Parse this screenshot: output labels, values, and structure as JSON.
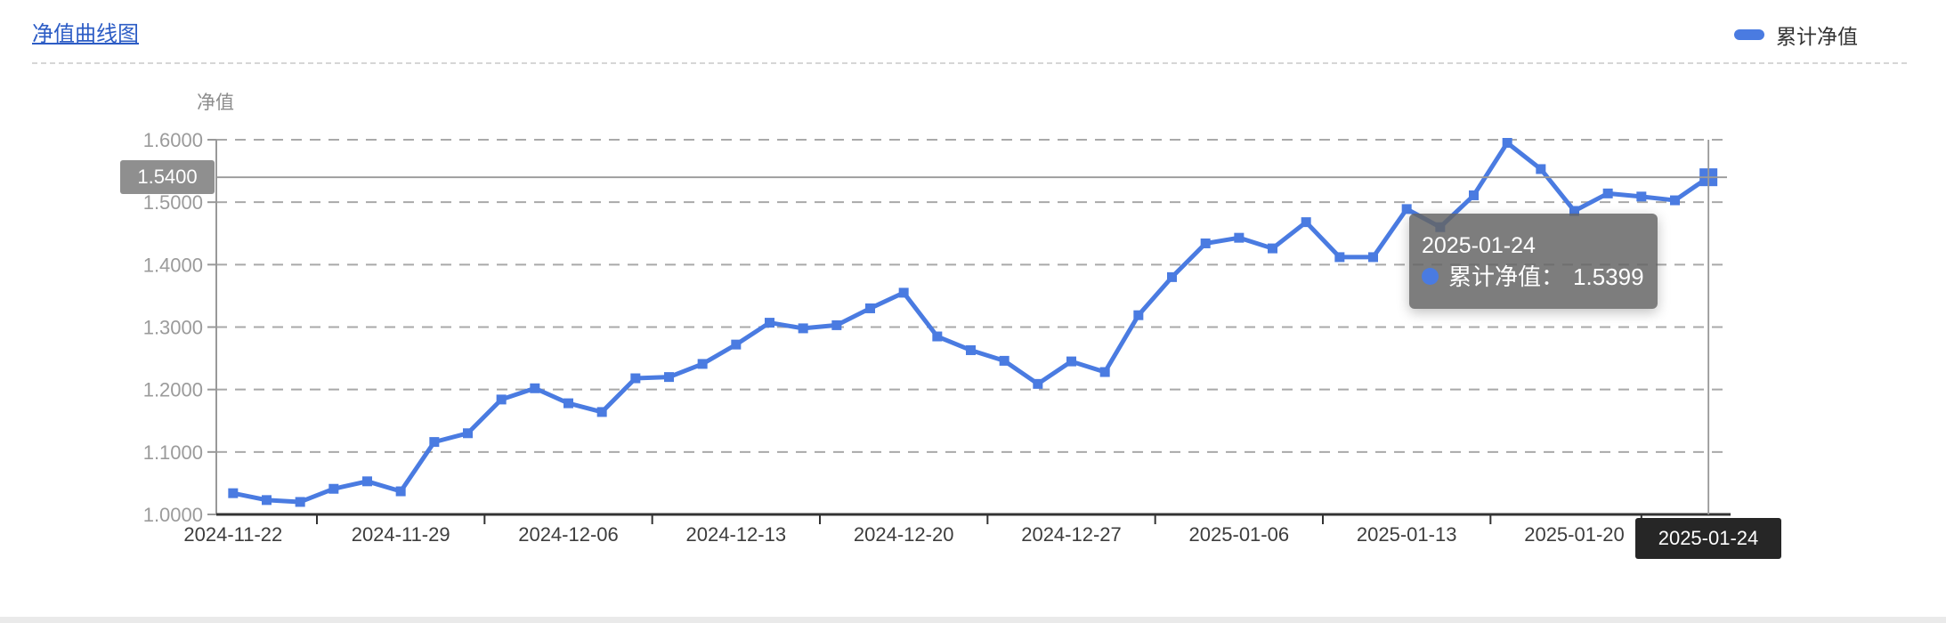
{
  "header": {
    "title": "净值曲线图"
  },
  "legend": {
    "label": "累计净值",
    "swatch_color": "#4a7be1"
  },
  "tooltip": {
    "date": "2025-01-24",
    "series_label": "累计净值",
    "separator": "：",
    "value": "1.5399",
    "marker_color": "#4a7be1",
    "background": "rgba(100,100,100,0.84)"
  },
  "crosshair": {
    "y_label": "1.5400",
    "x_label": "2025-01-24",
    "y_label_background": "#8f8f8f",
    "x_label_background": "#262626",
    "line_color": "#999999"
  },
  "chart_data": {
    "type": "line",
    "title": "净值曲线图",
    "series_name": "累计净值",
    "ylabel": "净值",
    "xlabel": "",
    "ylim": [
      1.0,
      1.6
    ],
    "grid": "horizontal dashed gridlines on",
    "legend_position": "top-right",
    "line_color": "#4a7be1",
    "marker": "square",
    "highlighted_index": 44,
    "x": [
      "2024-11-22",
      "2024-11-25",
      "2024-11-26",
      "2024-11-27",
      "2024-11-28",
      "2024-11-29",
      "2024-12-02",
      "2024-12-03",
      "2024-12-04",
      "2024-12-05",
      "2024-12-06",
      "2024-12-09",
      "2024-12-10",
      "2024-12-11",
      "2024-12-12",
      "2024-12-13",
      "2024-12-16",
      "2024-12-17",
      "2024-12-18",
      "2024-12-19",
      "2024-12-20",
      "2024-12-23",
      "2024-12-24",
      "2024-12-25",
      "2024-12-26",
      "2024-12-27",
      "2024-12-30",
      "2024-12-31",
      "2025-01-02",
      "2025-01-03",
      "2025-01-06",
      "2025-01-07",
      "2025-01-08",
      "2025-01-09",
      "2025-01-10",
      "2025-01-13",
      "2025-01-14",
      "2025-01-15",
      "2025-01-16",
      "2025-01-17",
      "2025-01-20",
      "2025-01-21",
      "2025-01-22",
      "2025-01-23",
      "2025-01-24"
    ],
    "values": [
      1.034,
      1.023,
      1.02,
      1.041,
      1.053,
      1.037,
      1.116,
      1.13,
      1.184,
      1.202,
      1.178,
      1.164,
      1.218,
      1.22,
      1.241,
      1.272,
      1.307,
      1.298,
      1.303,
      1.33,
      1.355,
      1.285,
      1.263,
      1.246,
      1.209,
      1.245,
      1.228,
      1.319,
      1.38,
      1.434,
      1.443,
      1.426,
      1.468,
      1.412,
      1.412,
      1.489,
      1.46,
      1.511,
      1.595,
      1.553,
      1.486,
      1.514,
      1.509,
      1.503,
      1.5399
    ],
    "x_tick_labels": [
      "2024-11-22",
      "2024-11-29",
      "2024-12-06",
      "2024-12-13",
      "2024-12-20",
      "2024-12-27",
      "2025-01-06",
      "2025-01-13",
      "2025-01-20",
      "2025-01-24"
    ],
    "x_tick_indices": [
      0,
      5,
      10,
      15,
      20,
      25,
      30,
      35,
      40,
      44
    ],
    "y_tick_labels": [
      "1.0000",
      "1.1000",
      "1.2000",
      "1.3000",
      "1.4000",
      "1.5000",
      "1.6000"
    ]
  }
}
